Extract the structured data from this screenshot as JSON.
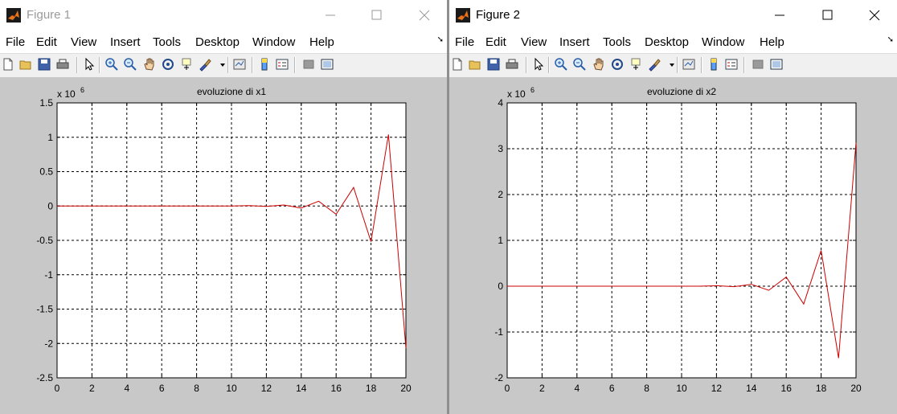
{
  "figure1": {
    "title": "Figure 1",
    "menu": [
      "File",
      "Edit",
      "View",
      "Insert",
      "Tools",
      "Desktop",
      "Window",
      "Help"
    ],
    "toolbar_icons": [
      "new-figure-icon",
      "open-file-icon",
      "save-icon",
      "print-icon",
      "pointer-icon",
      "zoom-in-icon",
      "zoom-out-icon",
      "pan-hand-icon",
      "rotate-3d-icon",
      "data-cursor-icon",
      "brush-icon",
      "brush-dropdown-icon",
      "link-plot-icon",
      "colorbar-icon",
      "legend-icon",
      "hide-plot-tools-icon",
      "show-plot-tools-icon"
    ]
  },
  "figure2": {
    "title": "Figure 2",
    "menu": [
      "File",
      "Edit",
      "View",
      "Insert",
      "Tools",
      "Desktop",
      "Window",
      "Help"
    ],
    "toolbar_icons": [
      "new-figure-icon",
      "open-file-icon",
      "save-icon",
      "print-icon",
      "pointer-icon",
      "zoom-in-icon",
      "zoom-out-icon",
      "pan-hand-icon",
      "rotate-3d-icon",
      "data-cursor-icon",
      "brush-icon",
      "brush-dropdown-icon",
      "link-plot-icon",
      "colorbar-icon",
      "legend-icon",
      "hide-plot-tools-icon",
      "show-plot-tools-icon"
    ]
  },
  "colors": {
    "line": "#cc0000",
    "axes_bg": "#ffffff",
    "figure_bg": "#c8c8c8"
  },
  "chart_data": [
    {
      "type": "line",
      "title": "evoluzione di x1",
      "xlabel": "",
      "ylabel": "",
      "scale_label": "x 10",
      "scale_exponent": "6",
      "xlim": [
        0,
        20
      ],
      "ylim": [
        -2.5,
        1.5
      ],
      "xticks": [
        0,
        2,
        4,
        6,
        8,
        10,
        12,
        14,
        16,
        18,
        20
      ],
      "yticks": [
        1.5,
        1,
        0.5,
        0,
        -0.5,
        -1,
        -1.5,
        -2,
        -2.5
      ],
      "ytick_labels": [
        "1.5",
        "1",
        "0.5",
        "0",
        "-0.5",
        "-1",
        "-1.5",
        "-2",
        "-2.5"
      ],
      "grid": true,
      "series": [
        {
          "x": [
            0,
            1,
            2,
            3,
            4,
            5,
            6,
            7,
            8,
            9,
            10,
            11,
            12,
            13,
            14,
            15,
            16,
            17,
            18,
            19,
            20
          ],
          "y": [
            0,
            0,
            0,
            0,
            0,
            0,
            0,
            0,
            0,
            0,
            0,
            0.005,
            -0.005,
            0.015,
            -0.03,
            0.07,
            -0.12,
            0.27,
            -0.52,
            1.04,
            -2.07
          ]
        }
      ]
    },
    {
      "type": "line",
      "title": "evoluzione di x2",
      "xlabel": "",
      "ylabel": "",
      "scale_label": "x 10",
      "scale_exponent": "6",
      "xlim": [
        0,
        20
      ],
      "ylim": [
        -2,
        4
      ],
      "xticks": [
        0,
        2,
        4,
        6,
        8,
        10,
        12,
        14,
        16,
        18,
        20
      ],
      "yticks": [
        4,
        3,
        2,
        1,
        0,
        -1,
        -2
      ],
      "ytick_labels": [
        "4",
        "3",
        "2",
        "1",
        "0",
        "-1",
        "-2"
      ],
      "grid": true,
      "series": [
        {
          "x": [
            0,
            1,
            2,
            3,
            4,
            5,
            6,
            7,
            8,
            9,
            10,
            11,
            12,
            13,
            14,
            15,
            16,
            17,
            18,
            19,
            20
          ],
          "y": [
            0,
            0,
            0,
            0,
            0,
            0,
            0,
            0,
            0,
            0,
            0,
            0,
            0.01,
            -0.01,
            0.04,
            -0.09,
            0.2,
            -0.39,
            0.78,
            -1.57,
            3.13
          ]
        }
      ]
    }
  ]
}
